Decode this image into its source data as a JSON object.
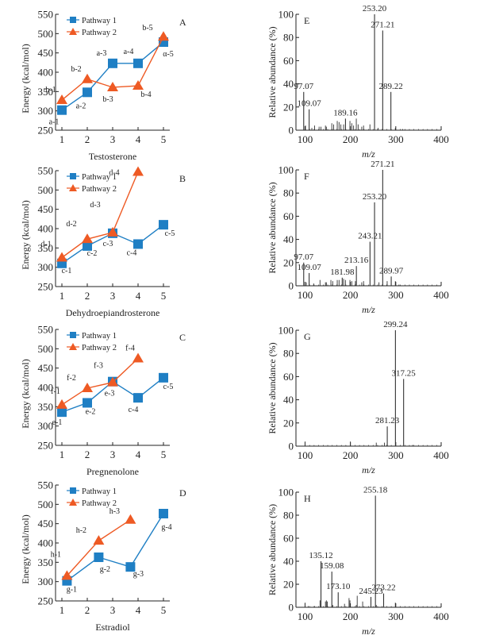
{
  "colors": {
    "pathway1": "#1f7fc4",
    "pathway2": "#ee5a24",
    "axis": "#222222",
    "peak": "#333333",
    "leader": "#7fb8a8"
  },
  "chart_data": [
    {
      "id": "A",
      "type": "line",
      "panel_letter": "A",
      "xlabel": "Testosterone",
      "ylabel": "Energy (kcal/mol)",
      "xlim": [
        1,
        5
      ],
      "ylim": [
        250,
        550
      ],
      "xticks": [
        "1",
        "2",
        "3",
        "4",
        "5"
      ],
      "yticks": [
        "250",
        "300",
        "350",
        "400",
        "450",
        "500",
        "550"
      ],
      "legend": [
        "Pathway 1",
        "Pathway 2"
      ],
      "legend_position": "top-left",
      "series": [
        {
          "name": "Pathway 1",
          "marker": "square",
          "x": [
            1,
            2,
            3,
            4,
            5
          ],
          "y": [
            302,
            348,
            423,
            423,
            478
          ],
          "labels": [
            "a-1",
            "a-2",
            "a-3",
            "a-4",
            "α-5"
          ]
        },
        {
          "name": "Pathway 2",
          "marker": "triangle",
          "x": [
            1,
            2,
            3,
            4,
            5
          ],
          "y": [
            328,
            382,
            361,
            365,
            492
          ],
          "labels": [
            "b-1",
            "b-2",
            "b-3",
            "b-4",
            "b-5"
          ]
        }
      ]
    },
    {
      "id": "B",
      "type": "line",
      "panel_letter": "B",
      "xlabel": "Dehydroepiandrosterone",
      "ylabel": "Energy (kcal/mol)",
      "xlim": [
        1,
        5
      ],
      "ylim": [
        250,
        550
      ],
      "xticks": [
        "1",
        "2",
        "3",
        "4",
        "5"
      ],
      "yticks": [
        "250",
        "300",
        "350",
        "400",
        "450",
        "500",
        "550"
      ],
      "legend": [
        "Pathway 1",
        "Pathway 2"
      ],
      "legend_position": "top-left",
      "series": [
        {
          "name": "Pathway 1",
          "marker": "square",
          "x": [
            1,
            2,
            3,
            4,
            5
          ],
          "y": [
            310,
            355,
            388,
            360,
            410
          ],
          "labels": [
            "c-1",
            "c-2",
            "c-3",
            "c-4",
            "c-5"
          ]
        },
        {
          "name": "Pathway 2",
          "marker": "triangle",
          "x": [
            1,
            2,
            3,
            4
          ],
          "y": [
            325,
            373,
            390,
            547
          ],
          "labels": [
            "d-1",
            "d-2",
            "d-3",
            "d-4"
          ]
        }
      ]
    },
    {
      "id": "C",
      "type": "line",
      "panel_letter": "C",
      "xlabel": "Pregnenolone",
      "ylabel": "Energy (kcal/mol)",
      "xlim": [
        1,
        5
      ],
      "ylim": [
        250,
        550
      ],
      "xticks": [
        "1",
        "2",
        "3",
        "4",
        "5"
      ],
      "yticks": [
        "250",
        "300",
        "350",
        "400",
        "450",
        "500",
        "550"
      ],
      "legend": [
        "Pathway 1",
        "Pathway 2"
      ],
      "legend_position": "top-left",
      "series": [
        {
          "name": "Pathway 1",
          "marker": "square",
          "x": [
            1,
            2,
            3,
            4,
            5
          ],
          "y": [
            336,
            360,
            415,
            373,
            425
          ],
          "labels": [
            "e-1",
            "e-2",
            "e-3",
            "c-4",
            "c-5"
          ]
        },
        {
          "name": "Pathway 2",
          "marker": "triangle",
          "x": [
            1,
            2,
            3,
            4
          ],
          "y": [
            355,
            398,
            413,
            475
          ],
          "labels": [
            "f-1",
            "f-2",
            "f-3",
            "f-4"
          ]
        }
      ]
    },
    {
      "id": "D",
      "type": "line",
      "panel_letter": "D",
      "xlabel": "Estradiol",
      "ylabel": "Energy (kcal/mol)",
      "xlim": [
        1,
        5
      ],
      "ylim": [
        250,
        550
      ],
      "xticks": [
        "1",
        "2",
        "3",
        "4",
        "5"
      ],
      "yticks": [
        "250",
        "300",
        "350",
        "400",
        "450",
        "500",
        "550"
      ],
      "legend": [
        "Pathway 1",
        "Pathway 2"
      ],
      "legend_position": "top-left",
      "series": [
        {
          "name": "Pathway 1",
          "marker": "square",
          "x": [
            1.2,
            2.45,
            3.7,
            5
          ],
          "y": [
            302,
            363,
            338,
            476
          ],
          "labels": [
            "g-1",
            "g-2",
            "g-3",
            "g-4"
          ]
        },
        {
          "name": "Pathway 2",
          "marker": "triangle",
          "x": [
            1.2,
            2.45,
            3.7
          ],
          "y": [
            315,
            406,
            460
          ],
          "labels": [
            "h-1",
            "h-2",
            "h-3"
          ]
        }
      ]
    },
    {
      "id": "E",
      "type": "bar",
      "subtype": "mass-spectrum",
      "panel_letter": "E",
      "xlabel": "m/z",
      "ylabel": "Relative abundance (%)",
      "xlim": [
        80,
        400
      ],
      "ylim": [
        0,
        100
      ],
      "xticks": [
        "100",
        "200",
        "300",
        "400"
      ],
      "yticks": [
        "0",
        "20",
        "40",
        "60",
        "80",
        "100"
      ],
      "labeled_peaks": [
        {
          "mz": 97.07,
          "abundance": 33,
          "label": "97.07"
        },
        {
          "mz": 109.07,
          "abundance": 18,
          "label": "109.07"
        },
        {
          "mz": 189.16,
          "abundance": 10,
          "label": "189.16"
        },
        {
          "mz": 253.2,
          "abundance": 100,
          "label": "253.20"
        },
        {
          "mz": 271.21,
          "abundance": 86,
          "label": "271.21"
        },
        {
          "mz": 289.22,
          "abundance": 33,
          "label": "289.22"
        }
      ],
      "minor_peaks": [
        {
          "mz": 101,
          "abundance": 4
        },
        {
          "mz": 115,
          "abundance": 2
        },
        {
          "mz": 121,
          "abundance": 4
        },
        {
          "mz": 131,
          "abundance": 3
        },
        {
          "mz": 135,
          "abundance": 3
        },
        {
          "mz": 145,
          "abundance": 4
        },
        {
          "mz": 147,
          "abundance": 3
        },
        {
          "mz": 159,
          "abundance": 6
        },
        {
          "mz": 163,
          "abundance": 5
        },
        {
          "mz": 171,
          "abundance": 8
        },
        {
          "mz": 175,
          "abundance": 7
        },
        {
          "mz": 179,
          "abundance": 5
        },
        {
          "mz": 185,
          "abundance": 5
        },
        {
          "mz": 199,
          "abundance": 8
        },
        {
          "mz": 203,
          "abundance": 6
        },
        {
          "mz": 207,
          "abundance": 4
        },
        {
          "mz": 213,
          "abundance": 10
        },
        {
          "mz": 217,
          "abundance": 5
        },
        {
          "mz": 225,
          "abundance": 3
        },
        {
          "mz": 229,
          "abundance": 4
        },
        {
          "mz": 243,
          "abundance": 5
        },
        {
          "mz": 261,
          "abundance": 2
        },
        {
          "mz": 299,
          "abundance": 2
        },
        {
          "mz": 315,
          "abundance": 1
        }
      ]
    },
    {
      "id": "F",
      "type": "bar",
      "subtype": "mass-spectrum",
      "panel_letter": "F",
      "xlabel": "m/z",
      "ylabel": "Relative abundance (%)",
      "xlim": [
        80,
        400
      ],
      "ylim": [
        0,
        100
      ],
      "xticks": [
        "100",
        "200",
        "300",
        "400"
      ],
      "yticks": [
        "0",
        "20",
        "40",
        "60",
        "80",
        "100"
      ],
      "labeled_peaks": [
        {
          "mz": 97.07,
          "abundance": 20,
          "label": "97.07"
        },
        {
          "mz": 109.07,
          "abundance": 11,
          "label": "109.07"
        },
        {
          "mz": 181.98,
          "abundance": 7,
          "label": "181.98"
        },
        {
          "mz": 213.16,
          "abundance": 17,
          "label": "213.16"
        },
        {
          "mz": 243.21,
          "abundance": 38,
          "label": "243.21"
        },
        {
          "mz": 253.2,
          "abundance": 72,
          "label": "253.20"
        },
        {
          "mz": 271.21,
          "abundance": 100,
          "label": "271.21"
        },
        {
          "mz": 289.97,
          "abundance": 8,
          "label": "289.97"
        }
      ],
      "minor_peaks": [
        {
          "mz": 103,
          "abundance": 3
        },
        {
          "mz": 119,
          "abundance": 2
        },
        {
          "mz": 133,
          "abundance": 5
        },
        {
          "mz": 145,
          "abundance": 3
        },
        {
          "mz": 147,
          "abundance": 3
        },
        {
          "mz": 157,
          "abundance": 5
        },
        {
          "mz": 161,
          "abundance": 4
        },
        {
          "mz": 171,
          "abundance": 5
        },
        {
          "mz": 175,
          "abundance": 5
        },
        {
          "mz": 185,
          "abundance": 6
        },
        {
          "mz": 189,
          "abundance": 5
        },
        {
          "mz": 199,
          "abundance": 5
        },
        {
          "mz": 203,
          "abundance": 4
        },
        {
          "mz": 211,
          "abundance": 4
        },
        {
          "mz": 225,
          "abundance": 3
        },
        {
          "mz": 229,
          "abundance": 4
        },
        {
          "mz": 263,
          "abundance": 3
        },
        {
          "mz": 281,
          "abundance": 4
        },
        {
          "mz": 299,
          "abundance": 4
        },
        {
          "mz": 307,
          "abundance": 1
        }
      ]
    },
    {
      "id": "G",
      "type": "bar",
      "subtype": "mass-spectrum",
      "panel_letter": "G",
      "xlabel": "m/z",
      "ylabel": "Relative abundance (%)",
      "xlim": [
        80,
        400
      ],
      "ylim": [
        0,
        100
      ],
      "xticks": [
        "100",
        "200",
        "300",
        "400"
      ],
      "yticks": [
        "0",
        "20",
        "40",
        "60",
        "80",
        "100"
      ],
      "labeled_peaks": [
        {
          "mz": 281.23,
          "abundance": 17,
          "label": "281.23"
        },
        {
          "mz": 299.24,
          "abundance": 100,
          "label": "299.24"
        },
        {
          "mz": 317.25,
          "abundance": 58,
          "label": "317.25"
        }
      ],
      "minor_peaks": [
        {
          "mz": 100,
          "abundance": 4
        },
        {
          "mz": 200,
          "abundance": 4
        },
        {
          "mz": 257,
          "abundance": 3
        },
        {
          "mz": 275,
          "abundance": 3
        },
        {
          "mz": 337,
          "abundance": 1
        }
      ]
    },
    {
      "id": "H",
      "type": "bar",
      "subtype": "mass-spectrum",
      "panel_letter": "H",
      "xlabel": "m/z",
      "ylabel": "Relative abundance (%)",
      "xlim": [
        80,
        400
      ],
      "ylim": [
        0,
        100
      ],
      "xticks": [
        "100",
        "200",
        "300",
        "400"
      ],
      "yticks": [
        "0",
        "20",
        "40",
        "60",
        "80",
        "100"
      ],
      "labeled_peaks": [
        {
          "mz": 135.12,
          "abundance": 40,
          "label": "135.12"
        },
        {
          "mz": 159.08,
          "abundance": 31,
          "label": "159.08"
        },
        {
          "mz": 173.1,
          "abundance": 13,
          "label": "173.10"
        },
        {
          "mz": 245.23,
          "abundance": 9,
          "label": "245.23"
        },
        {
          "mz": 255.18,
          "abundance": 97,
          "label": "255.18"
        },
        {
          "mz": 273.22,
          "abundance": 12,
          "label": "273.22"
        }
      ],
      "minor_peaks": [
        {
          "mz": 100,
          "abundance": 4
        },
        {
          "mz": 107,
          "abundance": 1
        },
        {
          "mz": 121,
          "abundance": 1
        },
        {
          "mz": 133,
          "abundance": 6
        },
        {
          "mz": 145,
          "abundance": 5
        },
        {
          "mz": 147,
          "abundance": 6
        },
        {
          "mz": 149,
          "abundance": 5
        },
        {
          "mz": 161,
          "abundance": 2
        },
        {
          "mz": 187,
          "abundance": 3
        },
        {
          "mz": 197,
          "abundance": 8
        },
        {
          "mz": 199,
          "abundance": 6
        },
        {
          "mz": 213,
          "abundance": 2
        },
        {
          "mz": 215,
          "abundance": 10
        },
        {
          "mz": 227,
          "abundance": 5
        },
        {
          "mz": 257,
          "abundance": 2
        },
        {
          "mz": 299,
          "abundance": 4
        }
      ]
    }
  ]
}
